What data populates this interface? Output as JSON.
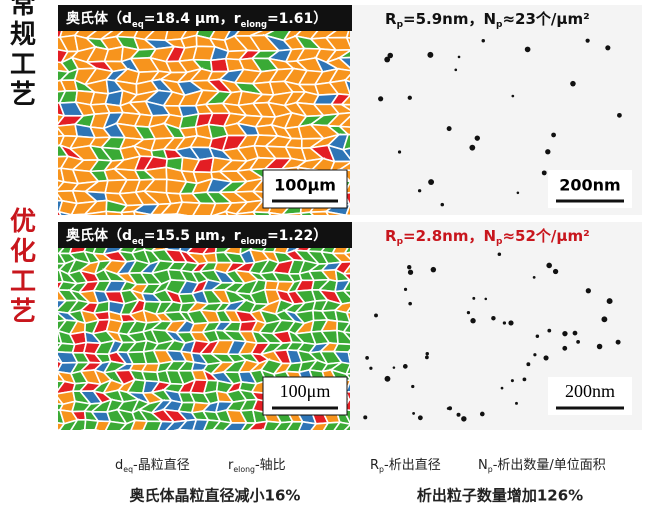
{
  "rows": [
    {
      "label": "常规工艺",
      "micrograph": {
        "header": [
          "奥氏体（d",
          "eq",
          "=18.4 μm，r",
          "elong",
          "=1.61）"
        ],
        "scale_bar": "100μm"
      },
      "precipitates": {
        "header": [
          "R",
          "p",
          "=5.9nm，N",
          "p",
          "≈23个/μm²"
        ],
        "scale_bar": "200nm"
      }
    },
    {
      "label": "优化工艺",
      "micrograph": {
        "header": [
          "奥氏体（d",
          "eq",
          "=15.5 μm，r",
          "elong",
          "=1.22）"
        ],
        "scale_bar": "100μm"
      },
      "precipitates": {
        "header": [
          "R",
          "p",
          "=2.8nm，N",
          "p",
          "≈52个/μm²"
        ],
        "scale_bar": "200nm"
      }
    }
  ],
  "legend": [
    [
      "d",
      "eq",
      "-晶粒直径"
    ],
    [
      "r",
      "elong",
      "-轴比"
    ],
    [
      "R",
      "p",
      "-析出直径"
    ],
    [
      "N",
      "p",
      "-析出数量/单位面积"
    ]
  ],
  "captions": [
    "奥氏体晶粒直径减小16%",
    "析出粒子数量增加126%"
  ]
}
